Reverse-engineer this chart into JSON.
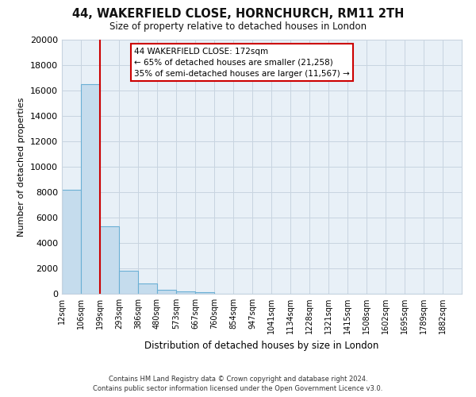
{
  "title": "44, WAKERFIELD CLOSE, HORNCHURCH, RM11 2TH",
  "subtitle": "Size of property relative to detached houses in London",
  "xlabel": "Distribution of detached houses by size in London",
  "ylabel": "Number of detached properties",
  "bin_labels": [
    "12sqm",
    "106sqm",
    "199sqm",
    "293sqm",
    "386sqm",
    "480sqm",
    "573sqm",
    "667sqm",
    "760sqm",
    "854sqm",
    "947sqm",
    "1041sqm",
    "1134sqm",
    "1228sqm",
    "1321sqm",
    "1415sqm",
    "1508sqm",
    "1602sqm",
    "1695sqm",
    "1789sqm",
    "1882sqm"
  ],
  "bar_values": [
    8200,
    16500,
    5300,
    1800,
    800,
    300,
    200,
    100,
    0,
    0,
    0,
    0,
    0,
    0,
    0,
    0,
    0,
    0,
    0,
    0
  ],
  "bar_color": "#c5dced",
  "bar_edge_color": "#6aafd4",
  "property_line_x": 2,
  "property_line_color": "#cc0000",
  "ylim": [
    0,
    20000
  ],
  "yticks": [
    0,
    2000,
    4000,
    6000,
    8000,
    10000,
    12000,
    14000,
    16000,
    18000,
    20000
  ],
  "annotation_title": "44 WAKERFIELD CLOSE: 172sqm",
  "annotation_line1": "← 65% of detached houses are smaller (21,258)",
  "annotation_line2": "35% of semi-detached houses are larger (11,567) →",
  "footer_line1": "Contains HM Land Registry data © Crown copyright and database right 2024.",
  "footer_line2": "Contains public sector information licensed under the Open Government Licence v3.0.",
  "background_color": "#ffffff",
  "plot_bg_color": "#e8f0f7",
  "grid_color": "#c8d4e0"
}
